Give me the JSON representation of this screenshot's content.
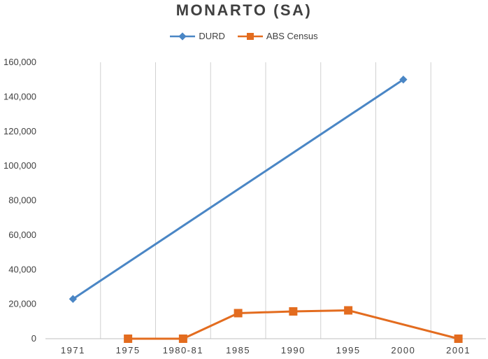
{
  "chart_data": {
    "type": "line",
    "title": "MONARTO (SA)",
    "xlabel": "",
    "ylabel": "",
    "categories": [
      "1971",
      "1975",
      "1980-81",
      "1985",
      "1990",
      "1995",
      "2000",
      "2001"
    ],
    "ylim": [
      0,
      160000
    ],
    "yticks": [
      0,
      20000,
      40000,
      60000,
      80000,
      100000,
      120000,
      140000,
      160000
    ],
    "ytick_labels": [
      "0",
      "20,000",
      "40,000",
      "60,000",
      "80,000",
      "100,000",
      "120,000",
      "140,000",
      "160,000"
    ],
    "grid": "vertical",
    "legend_position": "top-center",
    "series": [
      {
        "name": "DURD",
        "color": "#4a86c5",
        "marker": "diamond",
        "values": [
          23000,
          null,
          null,
          null,
          null,
          null,
          150000,
          null
        ]
      },
      {
        "name": "ABS Census",
        "color": "#e36c1f",
        "marker": "square",
        "values": [
          null,
          0,
          0,
          14800,
          15800,
          16400,
          null,
          0
        ]
      }
    ]
  }
}
